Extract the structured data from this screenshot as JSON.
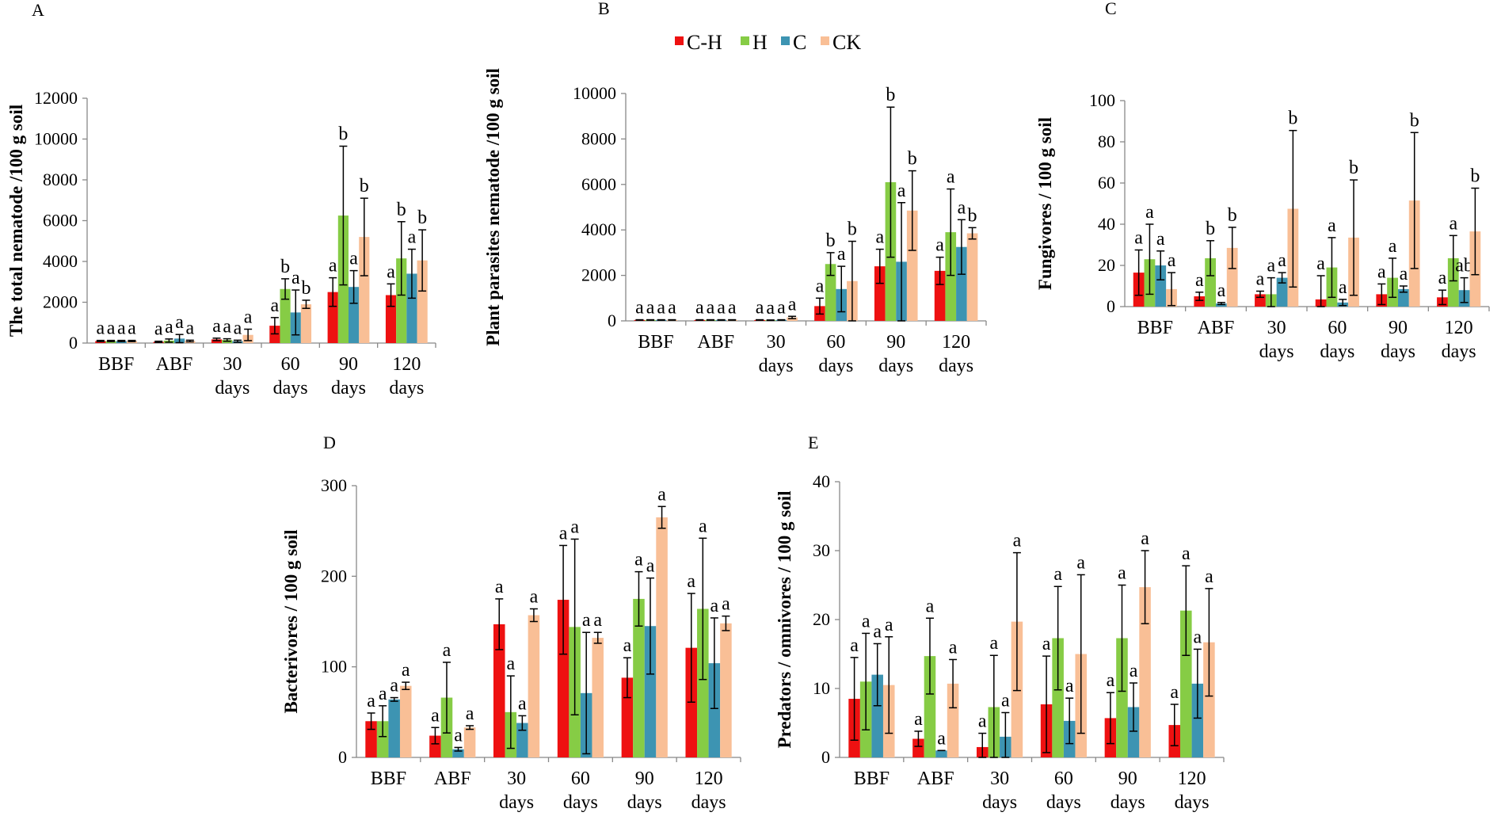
{
  "series": [
    {
      "name": "C-H",
      "color": "#ee1111"
    },
    {
      "name": "H",
      "color": "#86cc45"
    },
    {
      "name": "C",
      "color": "#3d94b2"
    },
    {
      "name": "CK",
      "color": "#f9bf96"
    }
  ],
  "chart_data": [
    {
      "id": "A",
      "type": "bar",
      "categories": [
        [
          "BBF"
        ],
        [
          "ABF"
        ],
        [
          "30",
          "days"
        ],
        [
          "60",
          "days"
        ],
        [
          "90",
          "days"
        ],
        [
          "120",
          "days"
        ]
      ],
      "ylabel": "The total nematode /100 g soil",
      "ylim": [
        0,
        12000
      ],
      "yticks": [
        0,
        2000,
        4000,
        6000,
        8000,
        10000,
        12000
      ],
      "values": [
        [
          100,
          100,
          100,
          100
        ],
        [
          60,
          120,
          220,
          100
        ],
        [
          180,
          150,
          90,
          400
        ],
        [
          850,
          2650,
          1500,
          1900
        ],
        [
          2500,
          6250,
          2750,
          5200
        ],
        [
          2350,
          4150,
          3400,
          4050
        ]
      ],
      "errors": [
        [
          30,
          30,
          30,
          30
        ],
        [
          30,
          80,
          200,
          40
        ],
        [
          60,
          60,
          50,
          280
        ],
        [
          400,
          500,
          1100,
          200
        ],
        [
          700,
          3400,
          800,
          1900
        ],
        [
          550,
          1800,
          1200,
          1500
        ]
      ],
      "labels": [
        [
          "a",
          "a",
          "a",
          "a"
        ],
        [
          "a",
          "a",
          "a",
          "a"
        ],
        [
          "a",
          "a",
          "a",
          "a"
        ],
        [
          "a",
          "b",
          "a",
          "b"
        ],
        [
          "a",
          "b",
          "a",
          "b"
        ],
        [
          "a",
          "b",
          "a",
          "b"
        ]
      ]
    },
    {
      "id": "B",
      "type": "bar",
      "categories": [
        [
          "BBF"
        ],
        [
          "ABF"
        ],
        [
          "30",
          "days"
        ],
        [
          "60",
          "days"
        ],
        [
          "90",
          "days"
        ],
        [
          "120",
          "days"
        ]
      ],
      "ylabel": "Plant parasites nematode /100 g soil",
      "ylim": [
        0,
        10000
      ],
      "yticks": [
        0,
        2000,
        4000,
        6000,
        8000,
        10000
      ],
      "values": [
        [
          40,
          40,
          40,
          40
        ],
        [
          40,
          40,
          40,
          40
        ],
        [
          40,
          30,
          40,
          150
        ],
        [
          650,
          2500,
          1400,
          1750
        ],
        [
          2400,
          6100,
          2600,
          4850
        ],
        [
          2200,
          3900,
          3250,
          3850
        ]
      ],
      "errors": [
        [
          10,
          10,
          10,
          10
        ],
        [
          10,
          10,
          10,
          10
        ],
        [
          10,
          10,
          10,
          50
        ],
        [
          350,
          500,
          1000,
          1750
        ],
        [
          750,
          3300,
          2600,
          1750
        ],
        [
          600,
          1900,
          1200,
          250
        ]
      ],
      "labels": [
        [
          "a",
          "a",
          "a",
          "a"
        ],
        [
          "a",
          "a",
          "a",
          "a"
        ],
        [
          "a",
          "a",
          "a",
          "a"
        ],
        [
          "a",
          "b",
          "a",
          "b"
        ],
        [
          "a",
          "b",
          "a",
          "b"
        ],
        [
          "a",
          "a",
          "a",
          "b"
        ]
      ]
    },
    {
      "id": "C",
      "type": "bar",
      "categories": [
        [
          "BBF"
        ],
        [
          "ABF"
        ],
        [
          "30",
          "days"
        ],
        [
          "60",
          "days"
        ],
        [
          "90",
          "days"
        ],
        [
          "120",
          "days"
        ]
      ],
      "ylabel": "Fungivores / 100 g soil",
      "ylim": [
        0,
        100
      ],
      "yticks": [
        0,
        20,
        40,
        60,
        80,
        100
      ],
      "values": [
        [
          16.5,
          23,
          20,
          8.5
        ],
        [
          5,
          23.5,
          1.5,
          28.5
        ],
        [
          6,
          6,
          14,
          47.5
        ],
        [
          3.5,
          19,
          2,
          33.5
        ],
        [
          6,
          14,
          8.5,
          51.5
        ],
        [
          4.5,
          23.5,
          8,
          36.5
        ]
      ],
      "errors": [
        [
          11,
          17,
          7,
          8
        ],
        [
          2,
          8.5,
          0.5,
          10
        ],
        [
          1.5,
          8,
          2.5,
          38
        ],
        [
          11.5,
          14.5,
          1.5,
          28
        ],
        [
          5,
          9.5,
          1.5,
          33
        ],
        [
          3.5,
          11,
          6,
          21
        ]
      ],
      "labels": [
        [
          "a",
          "a",
          "a",
          "a"
        ],
        [
          "a",
          "b",
          "a",
          "b"
        ],
        [
          "a",
          "a",
          "a",
          "b"
        ],
        [
          "a",
          "a",
          "a",
          "b"
        ],
        [
          "a",
          "a",
          "a",
          "b"
        ],
        [
          "a",
          "a",
          "ab",
          "b"
        ]
      ]
    },
    {
      "id": "D",
      "type": "bar",
      "categories": [
        [
          "BBF"
        ],
        [
          "ABF"
        ],
        [
          "30",
          "days"
        ],
        [
          "60",
          "days"
        ],
        [
          "90",
          "days"
        ],
        [
          "120",
          "days"
        ]
      ],
      "ylabel": "Bacterivores / 100 g soil",
      "ylim": [
        0,
        300
      ],
      "yticks": [
        0,
        100,
        200,
        300
      ],
      "values": [
        [
          40,
          40,
          64,
          79
        ],
        [
          24,
          66,
          9,
          33
        ],
        [
          147,
          50,
          38,
          157
        ],
        [
          174,
          144,
          71,
          132
        ],
        [
          88,
          175,
          145,
          265
        ],
        [
          121,
          164,
          104,
          148
        ]
      ],
      "errors": [
        [
          9,
          17,
          2,
          4
        ],
        [
          9,
          39,
          2,
          2
        ],
        [
          28,
          40,
          8,
          7
        ],
        [
          60,
          97,
          67,
          6
        ],
        [
          22,
          30,
          53,
          12
        ],
        [
          60,
          78,
          50,
          8
        ]
      ],
      "labels": [
        [
          "a",
          "a",
          "a",
          "a"
        ],
        [
          "a",
          "a",
          "a",
          "a"
        ],
        [
          "a",
          "a",
          "a",
          "a"
        ],
        [
          "a",
          "a",
          "a",
          "a"
        ],
        [
          "a",
          "a",
          "a",
          "a"
        ],
        [
          "a",
          "a",
          "a",
          "a"
        ]
      ]
    },
    {
      "id": "E",
      "type": "bar",
      "categories": [
        [
          "BBF"
        ],
        [
          "ABF"
        ],
        [
          "30",
          "days"
        ],
        [
          "60",
          "days"
        ],
        [
          "90",
          "days"
        ],
        [
          "120",
          "days"
        ]
      ],
      "ylabel": "Predators / omnivores / 100 g soil",
      "ylim": [
        0,
        40
      ],
      "yticks": [
        0,
        10,
        20,
        30,
        40
      ],
      "values": [
        [
          8.5,
          11,
          12,
          10.5
        ],
        [
          2.7,
          14.7,
          1,
          10.7
        ],
        [
          1.5,
          7.3,
          3,
          19.7
        ],
        [
          7.7,
          17.3,
          5.3,
          15
        ],
        [
          5.7,
          17.3,
          7.3,
          24.7
        ],
        [
          4.7,
          21.3,
          10.7,
          16.7
        ]
      ],
      "errors": [
        [
          6,
          7,
          4.5,
          7
        ],
        [
          1.1,
          5.5,
          0,
          3.5
        ],
        [
          2,
          7.5,
          3.5,
          10
        ],
        [
          7,
          7.5,
          3.3,
          11.5
        ],
        [
          3.7,
          7.7,
          3.5,
          5.3
        ],
        [
          3,
          6.5,
          5,
          7.8
        ]
      ],
      "labels": [
        [
          "a",
          "a",
          "a",
          "a"
        ],
        [
          "a",
          "a",
          "a",
          "a"
        ],
        [
          "a",
          "a",
          "a",
          "a"
        ],
        [
          "a",
          "a",
          "a",
          "a"
        ],
        [
          "a",
          "a",
          "a",
          "a"
        ],
        [
          "a",
          "a",
          "a",
          "a"
        ]
      ]
    }
  ]
}
